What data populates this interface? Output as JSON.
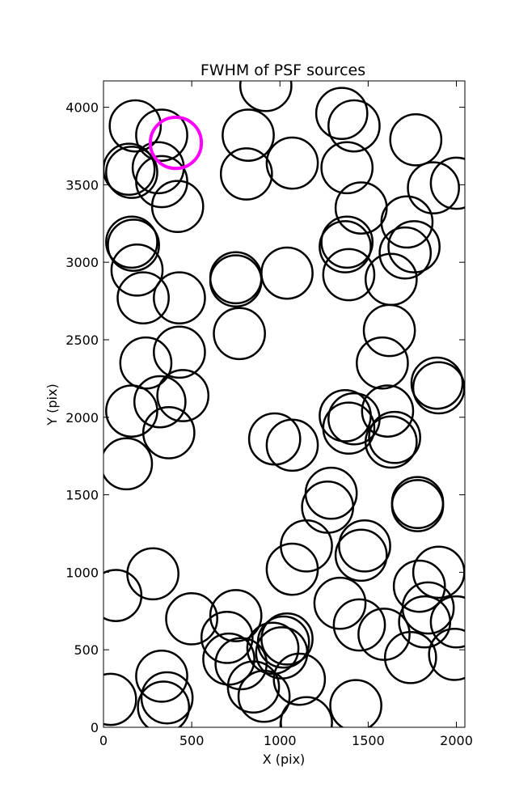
{
  "chart_data": {
    "type": "scatter",
    "title": "FWHM of PSF sources",
    "xlabel": "X (pix)",
    "ylabel": "Y (pix)",
    "xlim": [
      0,
      2048
    ],
    "ylim": [
      0,
      4170
    ],
    "xticks": [
      0,
      500,
      1000,
      1500,
      2000
    ],
    "yticks": [
      0,
      500,
      1000,
      1500,
      2000,
      2500,
      3000,
      3500,
      4000
    ],
    "grid": false,
    "marker": "open circle",
    "series": [
      {
        "color": "#000000",
        "radius": 145,
        "points": [
          [
            180,
            3880
          ],
          [
            330,
            3820
          ],
          [
            145,
            3600
          ],
          [
            160,
            3580
          ],
          [
            310,
            3610
          ],
          [
            330,
            3520
          ],
          [
            420,
            3360
          ],
          [
            820,
            3820
          ],
          [
            810,
            3570
          ],
          [
            1070,
            3640
          ],
          [
            920,
            4140
          ],
          [
            1350,
            3960
          ],
          [
            1420,
            3880
          ],
          [
            1380,
            3610
          ],
          [
            1460,
            3350
          ],
          [
            1380,
            3130
          ],
          [
            1370,
            3100
          ],
          [
            1390,
            2920
          ],
          [
            1770,
            3790
          ],
          [
            1870,
            3480
          ],
          [
            2000,
            3510
          ],
          [
            1720,
            3260
          ],
          [
            1760,
            3100
          ],
          [
            1710,
            3060
          ],
          [
            1630,
            2890
          ],
          [
            160,
            3130
          ],
          [
            170,
            3110
          ],
          [
            190,
            2950
          ],
          [
            225,
            2770
          ],
          [
            430,
            2770
          ],
          [
            750,
            2900
          ],
          [
            750,
            2880
          ],
          [
            1040,
            2930
          ],
          [
            770,
            2540
          ],
          [
            1620,
            2560
          ],
          [
            1580,
            2350
          ],
          [
            240,
            2350
          ],
          [
            430,
            2420
          ],
          [
            160,
            2040
          ],
          [
            320,
            2100
          ],
          [
            450,
            2140
          ],
          [
            370,
            1900
          ],
          [
            1890,
            2220
          ],
          [
            1900,
            2190
          ],
          [
            1370,
            2010
          ],
          [
            1420,
            1990
          ],
          [
            1390,
            1930
          ],
          [
            1610,
            2040
          ],
          [
            1650,
            1870
          ],
          [
            1630,
            1840
          ],
          [
            970,
            1860
          ],
          [
            1070,
            1820
          ],
          [
            130,
            1700
          ],
          [
            1290,
            1510
          ],
          [
            1270,
            1420
          ],
          [
            1780,
            1450
          ],
          [
            1780,
            1430
          ],
          [
            1150,
            1170
          ],
          [
            1070,
            1020
          ],
          [
            1480,
            1170
          ],
          [
            1460,
            1110
          ],
          [
            1790,
            910
          ],
          [
            1900,
            1000
          ],
          [
            280,
            990
          ],
          [
            70,
            850
          ],
          [
            500,
            700
          ],
          [
            750,
            720
          ],
          [
            700,
            580
          ],
          [
            710,
            440
          ],
          [
            780,
            410
          ],
          [
            850,
            260
          ],
          [
            910,
            200
          ],
          [
            960,
            510
          ],
          [
            1010,
            480
          ],
          [
            1040,
            570
          ],
          [
            1020,
            550
          ],
          [
            1110,
            310
          ],
          [
            1150,
            30
          ],
          [
            1340,
            800
          ],
          [
            1450,
            660
          ],
          [
            1590,
            600
          ],
          [
            1740,
            450
          ],
          [
            1840,
            770
          ],
          [
            1820,
            680
          ],
          [
            2000,
            680
          ],
          [
            1990,
            470
          ],
          [
            40,
            180
          ],
          [
            330,
            330
          ],
          [
            360,
            190
          ],
          [
            340,
            130
          ],
          [
            1430,
            140
          ]
        ]
      },
      {
        "color": "#ff00ff",
        "radius": 145,
        "points": [
          [
            410,
            3770
          ]
        ]
      }
    ]
  }
}
